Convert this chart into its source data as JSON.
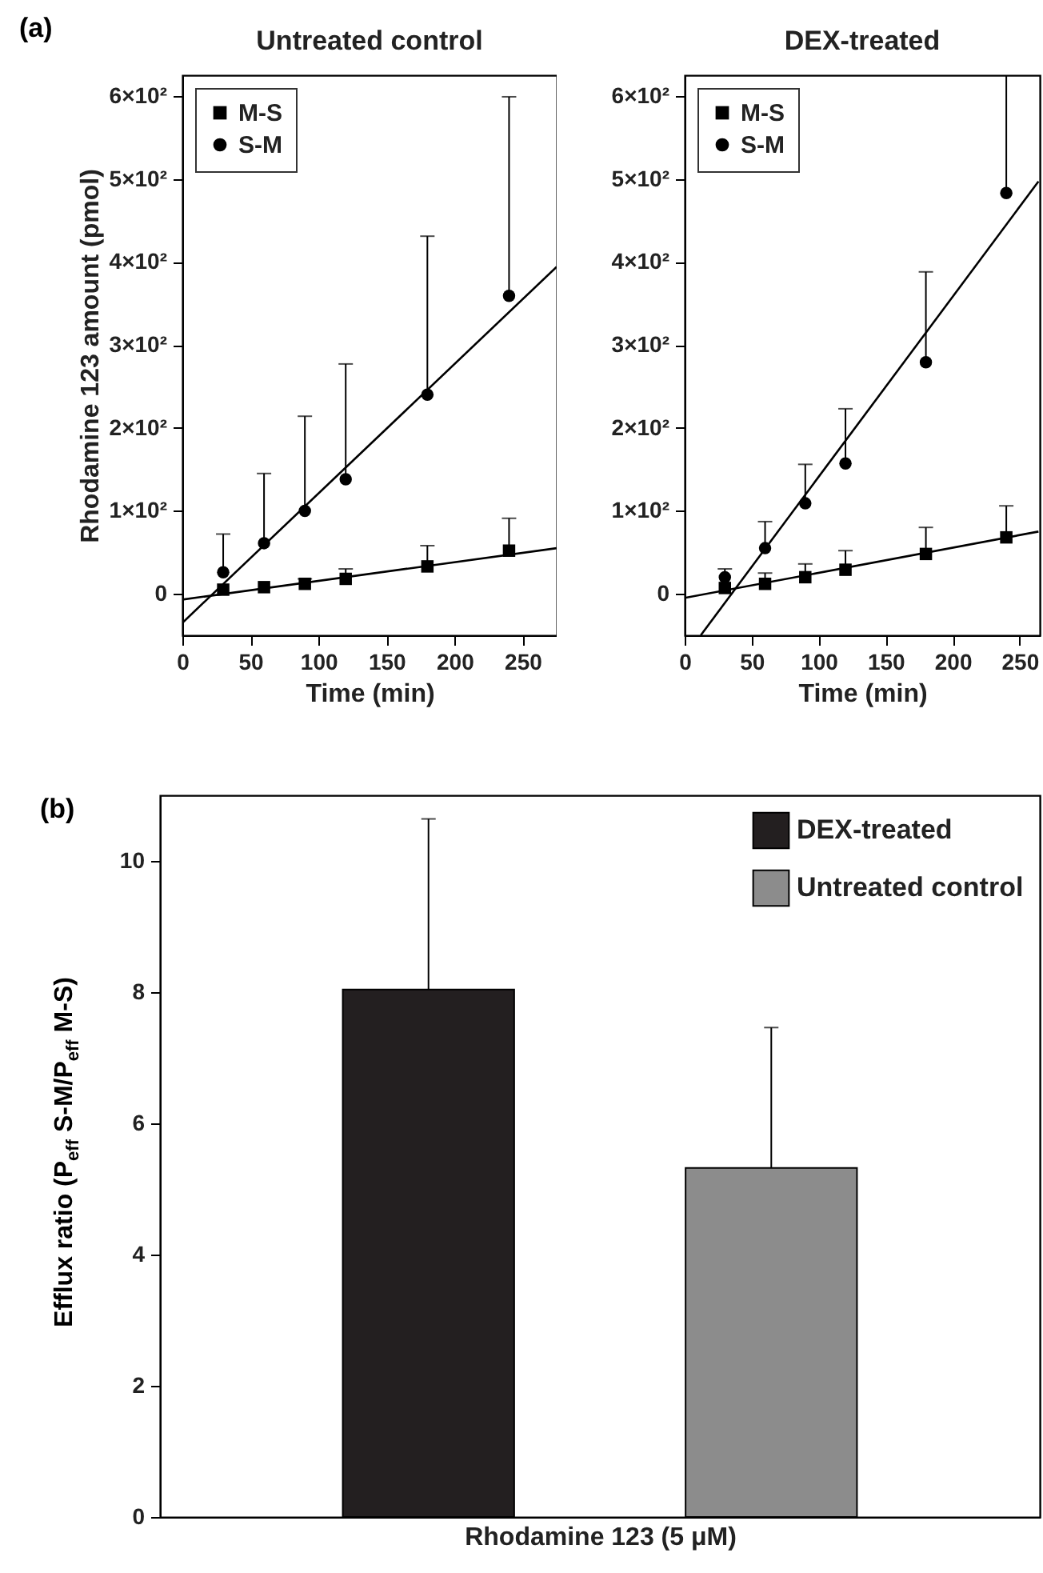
{
  "chart_data": [
    {
      "type": "scatter",
      "title": "Untreated control",
      "annotations": [
        "(a)"
      ],
      "xlabel": "Time (min)",
      "ylabel": "Rhodamine 123 amount (pmol)",
      "xlim": [
        0,
        275
      ],
      "xticks": [
        0,
        50,
        100,
        150,
        200,
        250
      ],
      "ylim": [
        -50,
        625
      ],
      "yticks": [
        0,
        {
          "value": 100,
          "label": "1×10²"
        },
        {
          "value": 200,
          "label": "2×10²"
        },
        {
          "value": 300,
          "label": "3×10²"
        },
        {
          "value": 400,
          "label": "4×10²"
        },
        {
          "value": 500,
          "label": "5×10²"
        },
        {
          "value": 600,
          "label": "6×10²"
        }
      ],
      "legend": "top left",
      "grid": false,
      "series": [
        {
          "name": "M-S",
          "type": "scatter",
          "marker": "square",
          "color": "#000000",
          "x": [
            30,
            60,
            90,
            120,
            180,
            240
          ],
          "values": [
            5,
            8,
            12,
            18,
            33,
            52
          ],
          "errors": [
            null,
            null,
            [
              12,
              18
            ],
            [
              18,
              30
            ],
            [
              33,
              58
            ],
            [
              52,
              91
            ]
          ]
        },
        {
          "name": "S-M",
          "type": "scatter",
          "marker": "circle",
          "color": "#000000",
          "x": [
            30,
            60,
            90,
            120,
            180,
            240
          ],
          "values": [
            26,
            61,
            100,
            138,
            240,
            359
          ],
          "errors": [
            [
              26,
              72
            ],
            [
              61,
              145
            ],
            [
              100,
              214
            ],
            [
              138,
              277
            ],
            [
              240,
              431
            ],
            [
              359,
              599
            ]
          ]
        },
        {
          "type": "line",
          "color": "#000000",
          "x": [
            0,
            275
          ],
          "values": [
            -7,
            55
          ]
        },
        {
          "type": "line",
          "color": "#000000",
          "x": [
            0,
            275
          ],
          "values": [
            -35,
            394
          ]
        }
      ]
    },
    {
      "type": "scatter",
      "title": "DEX-treated",
      "xlabel": "Time (min)",
      "xlim": [
        0,
        265
      ],
      "xticks": [
        0,
        50,
        100,
        150,
        200,
        250
      ],
      "ylim": [
        -50,
        625
      ],
      "yticks": [
        0,
        {
          "value": 100,
          "label": "1×10²"
        },
        {
          "value": 200,
          "label": "2×10²"
        },
        {
          "value": 300,
          "label": "3×10²"
        },
        {
          "value": 400,
          "label": "4×10²"
        },
        {
          "value": 500,
          "label": "5×10²"
        },
        {
          "value": 600,
          "label": "6×10²"
        }
      ],
      "legend": "top left",
      "grid": false,
      "series": [
        {
          "name": "M-S",
          "type": "scatter",
          "marker": "square",
          "color": "#000000",
          "x": [
            30,
            60,
            90,
            120,
            180,
            240
          ],
          "values": [
            7,
            12,
            20,
            29,
            48,
            68
          ],
          "errors": [
            null,
            [
              12,
              25
            ],
            [
              20,
              36
            ],
            [
              29,
              52
            ],
            [
              48,
              80
            ],
            [
              68,
              106
            ]
          ]
        },
        {
          "name": "S-M",
          "type": "scatter",
          "marker": "circle",
          "color": "#000000",
          "x": [
            30,
            60,
            90,
            120,
            180,
            240
          ],
          "values": [
            20,
            55,
            109,
            157,
            279,
            483
          ],
          "errors": [
            [
              20,
              30
            ],
            [
              55,
              87
            ],
            [
              109,
              156
            ],
            [
              157,
              223
            ],
            [
              279,
              388
            ],
            [
              483,
              625
            ]
          ]
        },
        {
          "type": "line",
          "color": "#000000",
          "x": [
            0,
            264
          ],
          "values": [
            -5,
            75
          ]
        },
        {
          "type": "line",
          "color": "#000000",
          "x": [
            12,
            264
          ],
          "values": [
            -50,
            497
          ]
        }
      ]
    },
    {
      "type": "bar",
      "annotations": [
        "(b)"
      ],
      "xlabel": "Rhodamine 123 (5 μM)",
      "ylabel": "Efflux ratio (P$_{eff}$ S-M/P$_{eff}$ M-S)",
      "categories": [
        null
      ],
      "ylim": [
        0,
        11
      ],
      "yticks": [
        0,
        2,
        4,
        6,
        8,
        10
      ],
      "legend": "top right",
      "grid": false,
      "series": [
        {
          "name": "DEX-treated",
          "color": "#231f20",
          "values": [
            8.04
          ],
          "errors": [
            [
              8.04,
              10.64
            ]
          ]
        },
        {
          "name": "Untreated control",
          "color": "#8c8c8c",
          "values": [
            5.32
          ],
          "errors": [
            [
              5.32,
              7.46
            ]
          ]
        }
      ]
    }
  ]
}
